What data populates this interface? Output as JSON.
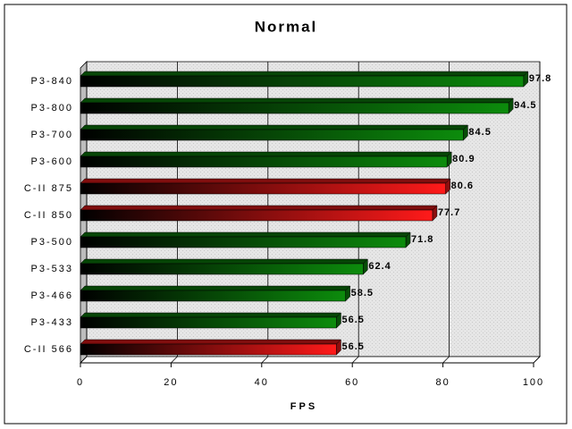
{
  "chart_data": {
    "type": "hbar",
    "title": "Normal",
    "xlabel": "FPS",
    "categories": [
      "P3-840",
      "P3-800",
      "P3-700",
      "P3-600",
      "C-II 875",
      "C-II 850",
      "P3-500",
      "P3-533",
      "P3-466",
      "P3-433",
      "C-II 566"
    ],
    "values": [
      97.8,
      94.5,
      84.5,
      80.9,
      80.6,
      77.7,
      71.8,
      62.4,
      58.5,
      56.5,
      56.5
    ],
    "colors": [
      "#0c8c0c",
      "#0c8c0c",
      "#0c8c0c",
      "#0c8c0c",
      "#ff1a1a",
      "#ff1a1a",
      "#0c8c0c",
      "#0c8c0c",
      "#0c8c0c",
      "#0c8c0c",
      "#ff1a1a"
    ],
    "xlim": [
      0,
      100
    ],
    "xticks": [
      0,
      20,
      40,
      60,
      80,
      100
    ],
    "grid": true
  }
}
